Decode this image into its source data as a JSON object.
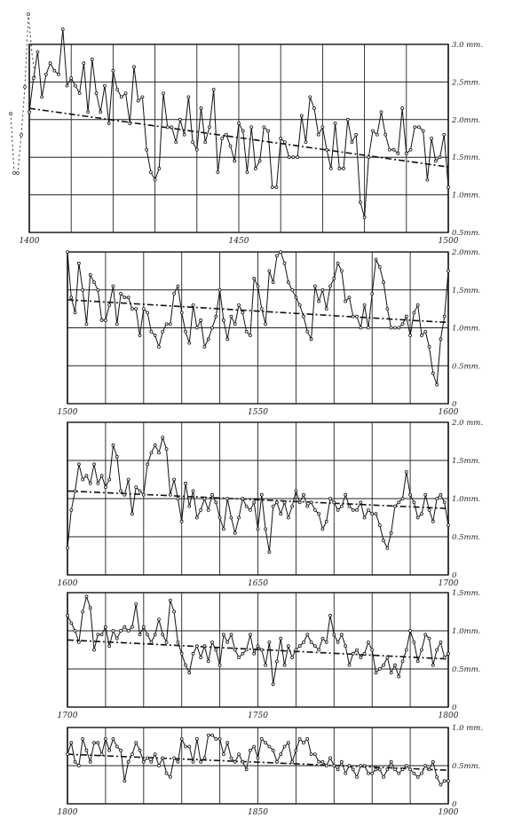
{
  "chart_data": [
    {
      "type": "line",
      "x_range": [
        1400,
        1500
      ],
      "ylim": [
        0.5,
        3.0
      ],
      "x_ticks": [
        "1400",
        "1450",
        "1500"
      ],
      "y_ticks": [
        {
          "v": 3.0,
          "label": "3.0 mm."
        },
        {
          "v": 2.5,
          "label": "2.5mm."
        },
        {
          "v": 2.0,
          "label": "2.0mm."
        },
        {
          "v": 1.5,
          "label": "1.5mm."
        },
        {
          "v": 1.0,
          "label": "1.0mm."
        },
        {
          "v": 0.5,
          "label": "0.5mm."
        }
      ],
      "trend": [
        [
          1400,
          2.15
        ],
        [
          1500,
          1.37
        ]
      ],
      "values": [
        2.1,
        2.55,
        2.9,
        2.3,
        2.6,
        2.75,
        2.65,
        2.6,
        3.2,
        2.45,
        2.55,
        2.45,
        2.35,
        2.75,
        2.1,
        2.8,
        2.35,
        2.1,
        2.45,
        1.95,
        2.65,
        2.4,
        2.3,
        2.35,
        1.95,
        2.7,
        2.25,
        2.3,
        1.6,
        1.3,
        1.2,
        1.35,
        2.35,
        1.9,
        1.9,
        1.7,
        2.0,
        1.8,
        2.3,
        1.7,
        1.6,
        2.15,
        1.7,
        1.9,
        2.4,
        1.3,
        1.75,
        1.8,
        1.65,
        1.45,
        1.95,
        1.85,
        1.3,
        1.9,
        1.35,
        1.45,
        1.9,
        1.85,
        1.1,
        1.1,
        1.75,
        1.7,
        1.5,
        1.5,
        1.5,
        2.05,
        1.7,
        2.3,
        2.15,
        1.8,
        1.9,
        1.6,
        1.35,
        1.95,
        1.35,
        1.35,
        2.0,
        1.7,
        1.8,
        0.9,
        0.7,
        1.5,
        1.85,
        1.8,
        2.1,
        1.8,
        1.6,
        1.6,
        1.55,
        2.15,
        1.55,
        1.6,
        1.9,
        1.9,
        1.85,
        1.2,
        1.75,
        1.45,
        1.5,
        1.8,
        1.1
      ]
    },
    {
      "type": "line",
      "x_range": [
        1500,
        1600
      ],
      "ylim": [
        0,
        2.0
      ],
      "x_ticks": [
        "1500",
        "1550",
        "1600"
      ],
      "y_ticks": [
        {
          "v": 2.0,
          "label": "2.0mm."
        },
        {
          "v": 1.5,
          "label": "1.5mm."
        },
        {
          "v": 1.0,
          "label": "1.0mm."
        },
        {
          "v": 0.5,
          "label": "0.5mm."
        },
        {
          "v": 0,
          "label": "0"
        }
      ],
      "trend": [
        [
          1500,
          1.37
        ],
        [
          1600,
          1.07
        ]
      ],
      "values": [
        2.0,
        1.4,
        1.2,
        1.85,
        1.5,
        1.05,
        1.7,
        1.6,
        1.5,
        1.1,
        1.1,
        1.3,
        1.55,
        1.05,
        1.45,
        1.4,
        1.4,
        1.25,
        1.25,
        0.9,
        1.25,
        1.2,
        0.95,
        0.9,
        0.75,
        0.95,
        1.05,
        1.05,
        1.45,
        1.55,
        1.2,
        0.95,
        0.8,
        1.3,
        1.0,
        1.1,
        0.75,
        0.85,
        1.0,
        1.15,
        1.5,
        1.1,
        0.85,
        1.15,
        1.05,
        1.3,
        1.2,
        0.95,
        0.9,
        1.65,
        1.55,
        1.25,
        1.05,
        1.75,
        1.6,
        1.95,
        2.0,
        1.85,
        1.6,
        1.5,
        1.4,
        1.3,
        1.15,
        0.95,
        0.85,
        1.55,
        1.35,
        1.5,
        1.25,
        1.55,
        1.65,
        1.85,
        1.75,
        1.35,
        1.4,
        1.15,
        1.15,
        1.0,
        1.3,
        1.0,
        1.45,
        1.9,
        1.8,
        1.6,
        1.25,
        1.0,
        1.0,
        1.0,
        1.05,
        1.15,
        0.9,
        1.2,
        1.3,
        0.9,
        0.95,
        0.75,
        0.4,
        0.25,
        0.85,
        1.15,
        1.75
      ]
    },
    {
      "type": "line",
      "x_range": [
        1600,
        1700
      ],
      "ylim": [
        0,
        2.0
      ],
      "x_ticks": [
        "1600",
        "1650",
        "1700"
      ],
      "y_ticks": [
        {
          "v": 2.0,
          "label": "2.0 mm."
        },
        {
          "v": 1.5,
          "label": "1.5mm."
        },
        {
          "v": 1.0,
          "label": "1.0mm."
        },
        {
          "v": 0.5,
          "label": "0.5mm."
        },
        {
          "v": 0,
          "label": "0"
        }
      ],
      "trend": [
        [
          1600,
          1.1
        ],
        [
          1700,
          0.87
        ]
      ],
      "values": [
        0.35,
        0.85,
        1.1,
        1.45,
        1.25,
        1.3,
        1.2,
        1.45,
        1.2,
        1.3,
        1.15,
        1.25,
        1.7,
        1.55,
        1.1,
        1.05,
        1.25,
        0.8,
        1.15,
        1.1,
        1.05,
        1.45,
        1.6,
        1.7,
        1.6,
        1.8,
        1.65,
        1.05,
        1.25,
        1.0,
        0.7,
        1.2,
        0.9,
        1.1,
        0.75,
        0.85,
        1.0,
        0.85,
        1.05,
        0.95,
        0.75,
        0.6,
        1.0,
        0.75,
        0.55,
        0.75,
        1.0,
        0.9,
        0.85,
        0.95,
        0.6,
        1.05,
        0.6,
        0.3,
        0.9,
        0.95,
        0.8,
        0.95,
        0.75,
        0.9,
        1.1,
        0.95,
        1.05,
        0.9,
        0.95,
        0.85,
        0.8,
        0.6,
        0.7,
        1.0,
        0.95,
        0.85,
        0.9,
        1.05,
        0.9,
        0.85,
        0.85,
        0.95,
        0.75,
        0.85,
        0.8,
        0.8,
        0.65,
        0.45,
        0.35,
        0.55,
        0.9,
        0.95,
        1.0,
        1.35,
        1.05,
        0.95,
        0.75,
        0.8,
        1.05,
        0.85,
        0.7,
        1.0,
        1.05,
        0.95,
        0.65
      ]
    },
    {
      "type": "line",
      "x_range": [
        1700,
        1800
      ],
      "ylim": [
        0,
        1.5
      ],
      "x_ticks": [
        "1700",
        "1750",
        "1800"
      ],
      "y_ticks": [
        {
          "v": 1.5,
          "label": "1.5mm."
        },
        {
          "v": 1.0,
          "label": "1.0mm."
        },
        {
          "v": 0.5,
          "label": "0.5mm."
        },
        {
          "v": 0,
          "label": "0"
        }
      ],
      "trend": [
        [
          1700,
          0.88
        ],
        [
          1800,
          0.63
        ]
      ],
      "values": [
        1.2,
        1.1,
        1.0,
        0.85,
        1.25,
        1.45,
        1.3,
        0.75,
        0.95,
        0.95,
        1.05,
        0.8,
        1.0,
        0.9,
        1.0,
        1.05,
        1.0,
        1.05,
        1.35,
        0.95,
        1.05,
        0.95,
        0.85,
        0.95,
        1.15,
        0.95,
        0.85,
        1.4,
        1.25,
        0.85,
        0.7,
        0.55,
        0.45,
        0.7,
        0.8,
        0.65,
        0.8,
        0.6,
        0.85,
        0.75,
        0.55,
        0.95,
        0.85,
        0.95,
        0.75,
        0.65,
        0.7,
        0.75,
        0.95,
        0.7,
        0.8,
        0.75,
        0.55,
        0.85,
        0.3,
        0.6,
        0.9,
        0.55,
        0.8,
        0.65,
        0.75,
        0.8,
        0.85,
        0.95,
        0.85,
        0.8,
        0.75,
        0.9,
        0.85,
        1.2,
        0.95,
        0.85,
        0.95,
        0.8,
        0.55,
        0.7,
        0.75,
        0.65,
        0.7,
        0.85,
        0.75,
        0.45,
        0.5,
        0.55,
        0.65,
        0.45,
        0.55,
        0.4,
        0.6,
        0.75,
        1.0,
        0.85,
        0.6,
        0.75,
        0.95,
        0.9,
        0.55,
        0.75,
        0.85,
        0.65,
        0.7
      ]
    },
    {
      "type": "line",
      "x_range": [
        1800,
        1900
      ],
      "ylim": [
        0,
        1.0
      ],
      "x_ticks": [
        "1800",
        "1850",
        "1900"
      ],
      "y_ticks": [
        {
          "v": 1.0,
          "label": "1.0 mm."
        },
        {
          "v": 0.5,
          "label": "0.5mm."
        },
        {
          "v": 0,
          "label": "0"
        }
      ],
      "trend": [
        [
          1800,
          0.65
        ],
        [
          1900,
          0.44
        ]
      ],
      "values": [
        0.65,
        0.8,
        0.55,
        0.5,
        0.85,
        0.7,
        0.55,
        0.8,
        0.8,
        0.65,
        0.85,
        0.7,
        0.85,
        0.75,
        0.7,
        0.3,
        0.55,
        0.65,
        0.8,
        0.7,
        0.55,
        0.6,
        0.55,
        0.65,
        0.5,
        0.6,
        0.4,
        0.35,
        0.6,
        0.55,
        0.85,
        0.75,
        0.75,
        0.55,
        0.85,
        0.55,
        0.6,
        0.9,
        0.9,
        0.85,
        0.85,
        0.65,
        0.8,
        0.6,
        0.55,
        0.65,
        0.55,
        0.45,
        0.7,
        0.75,
        0.6,
        0.85,
        0.8,
        0.75,
        0.7,
        0.55,
        0.65,
        0.75,
        0.8,
        0.55,
        0.7,
        0.85,
        0.8,
        0.85,
        0.65,
        0.65,
        0.55,
        0.55,
        0.5,
        0.6,
        0.5,
        0.45,
        0.55,
        0.4,
        0.5,
        0.45,
        0.35,
        0.5,
        0.5,
        0.4,
        0.4,
        0.45,
        0.45,
        0.35,
        0.45,
        0.55,
        0.45,
        0.4,
        0.45,
        0.5,
        0.45,
        0.4,
        0.35,
        0.4,
        0.5,
        0.45,
        0.55,
        0.35,
        0.25,
        0.3,
        0.3
      ]
    }
  ]
}
